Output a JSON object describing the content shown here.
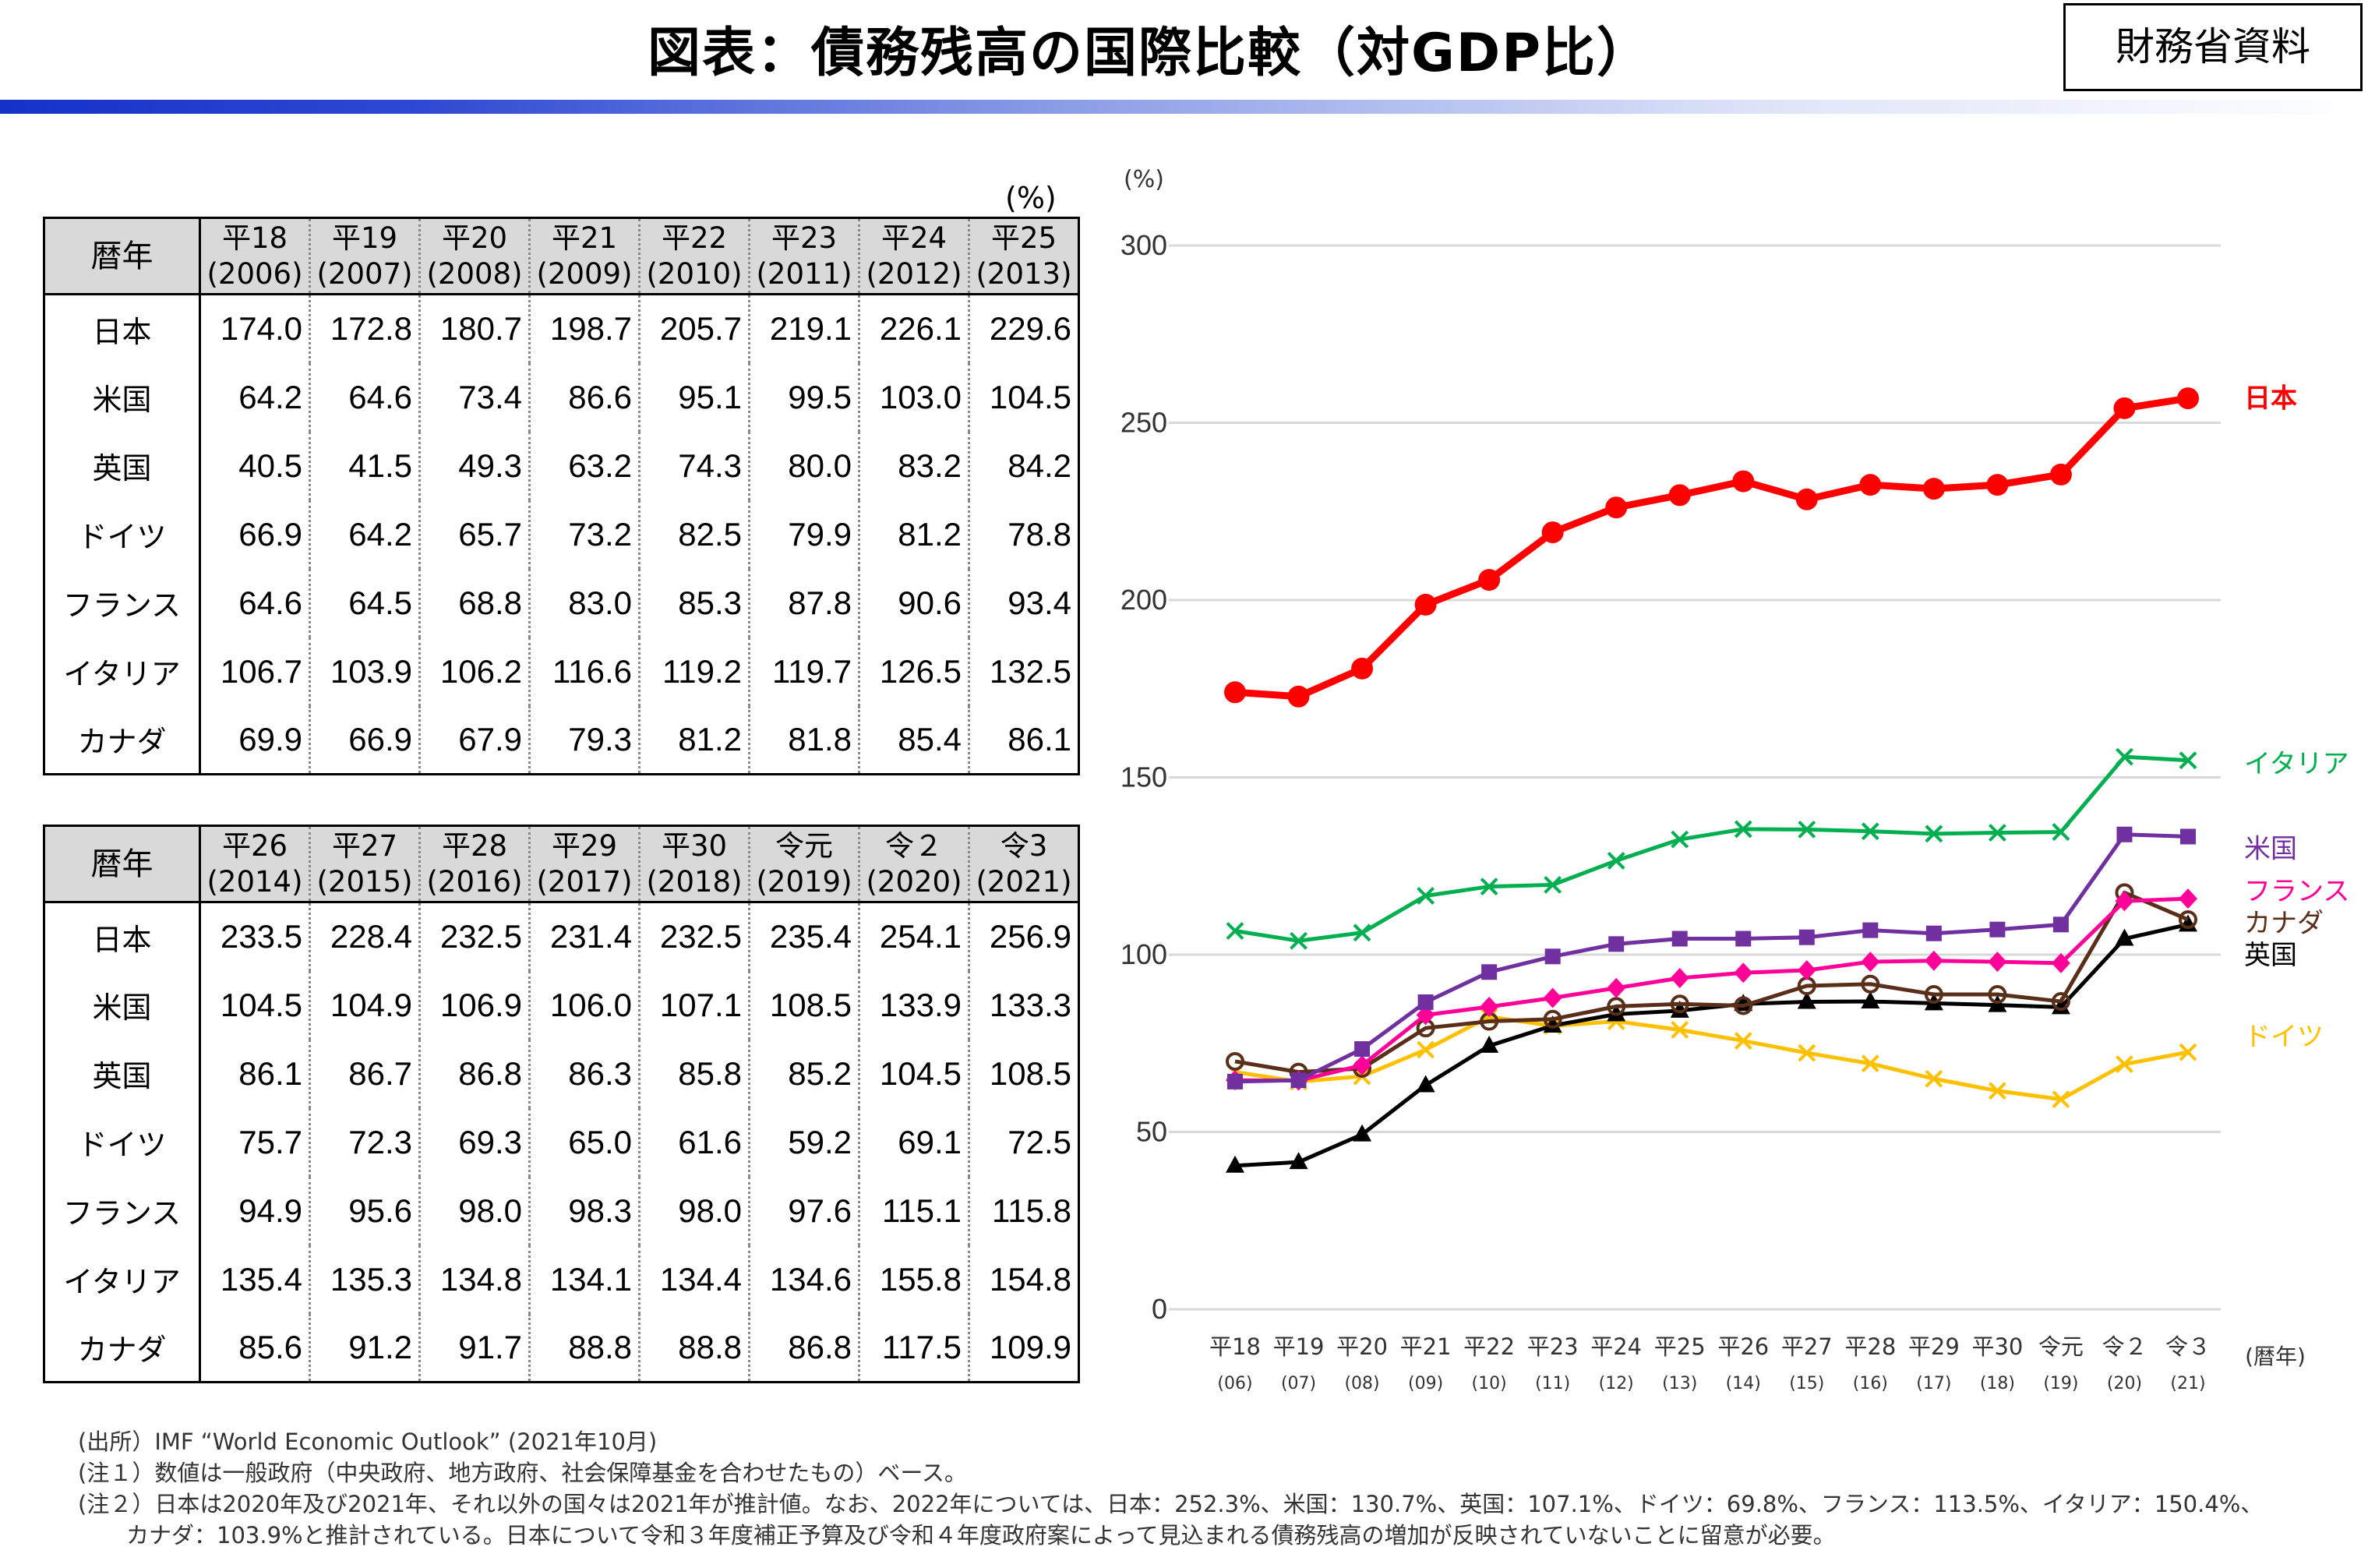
{
  "header": {
    "title": "図表：債務残高の国際比較（対GDP比）",
    "source_box": "財務省資料"
  },
  "table_unit": "(%)",
  "row_header": "暦年",
  "table1": {
    "years": [
      {
        "era": "平18",
        "ad": "(2006)"
      },
      {
        "era": "平19",
        "ad": "(2007)"
      },
      {
        "era": "平20",
        "ad": "(2008)"
      },
      {
        "era": "平21",
        "ad": "(2009)"
      },
      {
        "era": "平22",
        "ad": "(2010)"
      },
      {
        "era": "平23",
        "ad": "(2011)"
      },
      {
        "era": "平24",
        "ad": "(2012)"
      },
      {
        "era": "平25",
        "ad": "(2013)"
      }
    ],
    "rows": [
      {
        "country": "日本",
        "values": [
          "174.0",
          "172.8",
          "180.7",
          "198.7",
          "205.7",
          "219.1",
          "226.1",
          "229.6"
        ]
      },
      {
        "country": "米国",
        "values": [
          "64.2",
          "64.6",
          "73.4",
          "86.6",
          "95.1",
          "99.5",
          "103.0",
          "104.5"
        ]
      },
      {
        "country": "英国",
        "values": [
          "40.5",
          "41.5",
          "49.3",
          "63.2",
          "74.3",
          "80.0",
          "83.2",
          "84.2"
        ]
      },
      {
        "country": "ドイツ",
        "values": [
          "66.9",
          "64.2",
          "65.7",
          "73.2",
          "82.5",
          "79.9",
          "81.2",
          "78.8"
        ]
      },
      {
        "country": "フランス",
        "values": [
          "64.6",
          "64.5",
          "68.8",
          "83.0",
          "85.3",
          "87.8",
          "90.6",
          "93.4"
        ]
      },
      {
        "country": "イタリア",
        "values": [
          "106.7",
          "103.9",
          "106.2",
          "116.6",
          "119.2",
          "119.7",
          "126.5",
          "132.5"
        ]
      },
      {
        "country": "カナダ",
        "values": [
          "69.9",
          "66.9",
          "67.9",
          "79.3",
          "81.2",
          "81.8",
          "85.4",
          "86.1"
        ]
      }
    ]
  },
  "table2": {
    "years": [
      {
        "era": "平26",
        "ad": "(2014)"
      },
      {
        "era": "平27",
        "ad": "(2015)"
      },
      {
        "era": "平28",
        "ad": "(2016)"
      },
      {
        "era": "平29",
        "ad": "(2017)"
      },
      {
        "era": "平30",
        "ad": "(2018)"
      },
      {
        "era": "令元",
        "ad": "(2019)"
      },
      {
        "era": "令２",
        "ad": "(2020)"
      },
      {
        "era": "令3",
        "ad": "(2021)"
      }
    ],
    "rows": [
      {
        "country": "日本",
        "values": [
          "233.5",
          "228.4",
          "232.5",
          "231.4",
          "232.5",
          "235.4",
          "254.1",
          "256.9"
        ]
      },
      {
        "country": "米国",
        "values": [
          "104.5",
          "104.9",
          "106.9",
          "106.0",
          "107.1",
          "108.5",
          "133.9",
          "133.3"
        ]
      },
      {
        "country": "英国",
        "values": [
          "86.1",
          "86.7",
          "86.8",
          "86.3",
          "85.8",
          "85.2",
          "104.5",
          "108.5"
        ]
      },
      {
        "country": "ドイツ",
        "values": [
          "75.7",
          "72.3",
          "69.3",
          "65.0",
          "61.6",
          "59.2",
          "69.1",
          "72.5"
        ]
      },
      {
        "country": "フランス",
        "values": [
          "94.9",
          "95.6",
          "98.0",
          "98.3",
          "98.0",
          "97.6",
          "115.1",
          "115.8"
        ]
      },
      {
        "country": "イタリア",
        "values": [
          "135.4",
          "135.3",
          "134.8",
          "134.1",
          "134.4",
          "134.6",
          "155.8",
          "154.8"
        ]
      },
      {
        "country": "カナダ",
        "values": [
          "85.6",
          "91.2",
          "91.7",
          "88.8",
          "88.8",
          "86.8",
          "117.5",
          "109.9"
        ]
      }
    ]
  },
  "chart_data": {
    "type": "line",
    "ylabel": "(%)",
    "xlabel": "(暦年)",
    "ylim": [
      0,
      300
    ],
    "yticks": [
      0,
      50,
      100,
      150,
      200,
      250,
      300
    ],
    "grid": true,
    "categories": [
      {
        "era": "平18",
        "short": "(06)"
      },
      {
        "era": "平19",
        "short": "(07)"
      },
      {
        "era": "平20",
        "short": "(08)"
      },
      {
        "era": "平21",
        "short": "(09)"
      },
      {
        "era": "平22",
        "short": "(10)"
      },
      {
        "era": "平23",
        "short": "(11)"
      },
      {
        "era": "平24",
        "short": "(12)"
      },
      {
        "era": "平25",
        "short": "(13)"
      },
      {
        "era": "平26",
        "short": "(14)"
      },
      {
        "era": "平27",
        "short": "(15)"
      },
      {
        "era": "平28",
        "short": "(16)"
      },
      {
        "era": "平29",
        "short": "(17)"
      },
      {
        "era": "平30",
        "short": "(18)"
      },
      {
        "era": "令元",
        "short": "(19)"
      },
      {
        "era": "令２",
        "short": "(20)"
      },
      {
        "era": "令３",
        "short": "(21)"
      }
    ],
    "series": [
      {
        "name": "日本",
        "color": "#ff0000",
        "marker": "circle-filled-large",
        "values": [
          174.0,
          172.8,
          180.7,
          198.7,
          205.7,
          219.1,
          226.1,
          229.6,
          233.5,
          228.4,
          232.5,
          231.4,
          232.5,
          235.4,
          254.1,
          256.9
        ]
      },
      {
        "name": "イタリア",
        "color": "#00b050",
        "marker": "x",
        "values": [
          106.7,
          103.9,
          106.2,
          116.6,
          119.2,
          119.7,
          126.5,
          132.5,
          135.4,
          135.3,
          134.8,
          134.1,
          134.4,
          134.6,
          155.8,
          154.8
        ]
      },
      {
        "name": "米国",
        "color": "#7030a0",
        "marker": "square",
        "values": [
          64.2,
          64.6,
          73.4,
          86.6,
          95.1,
          99.5,
          103.0,
          104.5,
          104.5,
          104.9,
          106.9,
          106.0,
          107.1,
          108.5,
          133.9,
          133.3
        ]
      },
      {
        "name": "フランス",
        "color": "#ff0099",
        "marker": "diamond",
        "values": [
          64.6,
          64.5,
          68.8,
          83.0,
          85.3,
          87.8,
          90.6,
          93.4,
          94.9,
          95.6,
          98.0,
          98.3,
          98.0,
          97.6,
          115.1,
          115.8
        ]
      },
      {
        "name": "カナダ",
        "color": "#5a2f1a",
        "marker": "circle-open",
        "values": [
          69.9,
          66.9,
          67.9,
          79.3,
          81.2,
          81.8,
          85.4,
          86.1,
          85.6,
          91.2,
          91.7,
          88.8,
          88.8,
          86.8,
          117.5,
          109.9
        ]
      },
      {
        "name": "英国",
        "color": "#000000",
        "marker": "triangle",
        "values": [
          40.5,
          41.5,
          49.3,
          63.2,
          74.3,
          80.0,
          83.2,
          84.2,
          86.1,
          86.7,
          86.8,
          86.3,
          85.8,
          85.2,
          104.5,
          108.5
        ]
      },
      {
        "name": "ドイツ",
        "color": "#ffc000",
        "marker": "x",
        "values": [
          66.9,
          64.2,
          65.7,
          73.2,
          82.5,
          79.9,
          81.2,
          78.8,
          75.7,
          72.3,
          69.3,
          65.0,
          61.6,
          59.2,
          69.1,
          72.5
        ]
      }
    ],
    "legend": [
      {
        "name": "日本",
        "color": "#ff0000",
        "value_at": 257
      },
      {
        "name": "イタリア",
        "color": "#00b050",
        "value_at": 154
      },
      {
        "name": "米国",
        "color": "#7030a0",
        "value_at": 130
      },
      {
        "name": "フランス",
        "color": "#ff0099",
        "value_at": 118
      },
      {
        "name": "カナダ",
        "color": "#5a2f1a",
        "value_at": 109
      },
      {
        "name": "英国",
        "color": "#000000",
        "value_at": 100
      },
      {
        "name": "ドイツ",
        "color": "#ffc000",
        "value_at": 77
      }
    ]
  },
  "notes": [
    "(出所）IMF “World Economic Outlook” (2021年10月)",
    "(注１）数値は一般政府（中央政府、地方政府、社会保障基金を合わせたもの）ベース。",
    "(注２）日本は2020年及び2021年、それ以外の国々は2021年が推計値。なお、2022年については、日本：252.3%、米国：130.7%、英国：107.1%、ドイツ：69.8%、フランス：113.5%、イタリア：150.4%、",
    "カナダ：103.9%と推計されている。日本について令和３年度補正予算及び令和４年度政府案によって見込まれる債務残高の増加が反映されていないことに留意が必要。"
  ]
}
